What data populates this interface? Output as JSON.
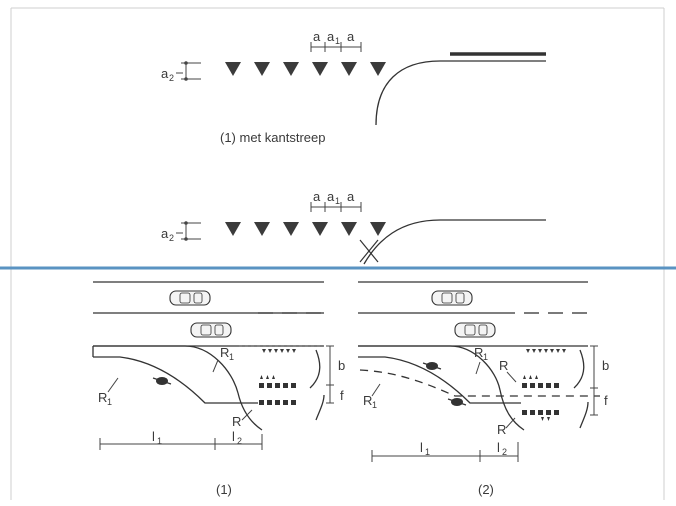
{
  "colors": {
    "line": "#333333",
    "triangle": "#3b3b3b",
    "separator": "#5a93c2",
    "frame": "#cfcfcf"
  },
  "top_diagram": {
    "caption": "(1) met kantstreep",
    "spacing_label_a": "a",
    "spacing_label_a1": "a",
    "spacing_sub_1": "1",
    "height_label": "a",
    "height_sub": "2"
  },
  "middle_diagram": {
    "spacing_label_a": "a",
    "spacing_label_a1": "a",
    "spacing_sub_1": "1",
    "height_label": "a",
    "height_sub": "2"
  },
  "bottom_left": {
    "caption": "(1)",
    "labels": {
      "R1": "R",
      "R1_sub": "1",
      "R": "R",
      "b": "b",
      "f": "f",
      "l": "l",
      "l1_sub": "1",
      "l2_sub": "2"
    }
  },
  "bottom_right": {
    "caption": "(2)",
    "labels": {
      "R1": "R",
      "R1_sub": "1",
      "R": "R",
      "b": "b",
      "f": "f",
      "l": "l",
      "l1_sub": "1",
      "l2_sub": "2"
    }
  },
  "icons": [
    "car-icon",
    "cyclist-icon",
    "yield-triangle-icon",
    "cross-out-icon"
  ]
}
